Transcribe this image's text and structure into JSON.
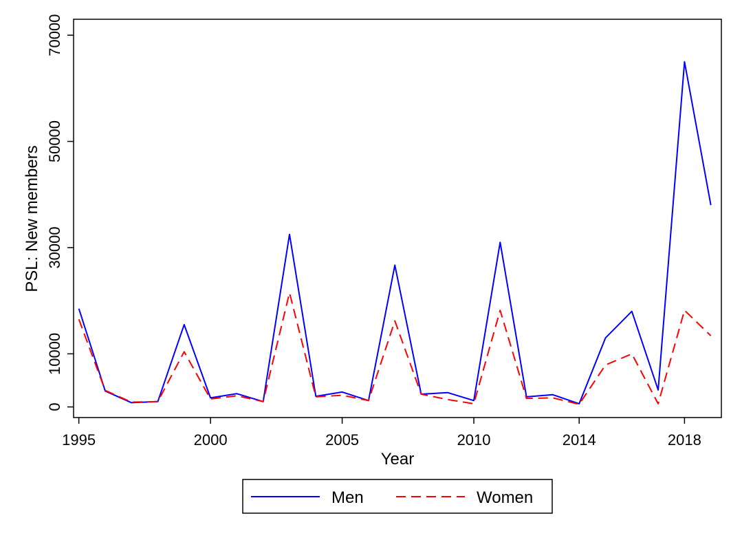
{
  "chart_data": {
    "type": "line",
    "title": "",
    "xlabel": "Year",
    "ylabel": "PSL: New members",
    "x": [
      1995,
      1996,
      1997,
      1998,
      1999,
      2000,
      2001,
      2002,
      2003,
      2004,
      2005,
      2006,
      2007,
      2008,
      2009,
      2010,
      2011,
      2012,
      2013,
      2014,
      2015,
      2016,
      2017,
      2018,
      2019
    ],
    "xtick_values": [
      1995,
      2000,
      2005,
      2010,
      2014,
      2018
    ],
    "xtick_labels": [
      "1995",
      "2000",
      "2005",
      "2010",
      "2014",
      "2018"
    ],
    "ytick_values": [
      0,
      10000,
      30000,
      50000,
      70000
    ],
    "ytick_labels": [
      "0",
      "10000",
      "30000",
      "50000",
      "70000"
    ],
    "xlim": [
      1994.8,
      2019.4
    ],
    "ylim": [
      -2000,
      73000
    ],
    "grid": false,
    "legend_position": "bottom",
    "series": [
      {
        "name": "Men",
        "color": "#0000ff",
        "dash": "solid",
        "values": [
          18500,
          3000,
          800,
          1000,
          15500,
          1700,
          2500,
          1000,
          32500,
          2000,
          2800,
          1200,
          26700,
          2400,
          2700,
          1200,
          31000,
          1900,
          2300,
          600,
          13000,
          18000,
          3200,
          65000,
          38000
        ]
      },
      {
        "name": "Women",
        "color": "#ff0000",
        "dash": "dashed",
        "values": [
          16500,
          3100,
          900,
          1000,
          10400,
          1500,
          2100,
          1000,
          21500,
          1900,
          2200,
          1200,
          16200,
          2400,
          1400,
          600,
          18200,
          1600,
          1700,
          500,
          7900,
          10000,
          600,
          18200,
          13400
        ]
      }
    ]
  }
}
